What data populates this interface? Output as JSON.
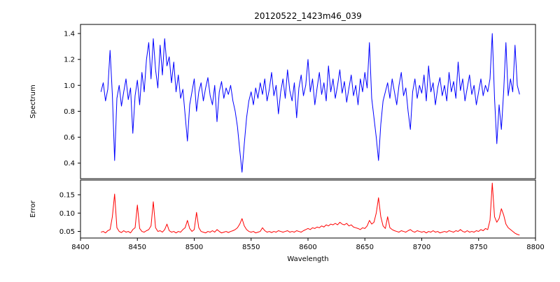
{
  "chart_data": {
    "type": "line",
    "title": "20120522_1423m46_039",
    "xlabel": "Wavelength",
    "x_start": 8418,
    "x_step": 2,
    "xlim": [
      8400,
      8800
    ],
    "xticks": [
      8400,
      8450,
      8500,
      8550,
      8600,
      8650,
      8700,
      8750,
      8800
    ],
    "xtick_labels": [
      "8400",
      "8450",
      "8500",
      "8550",
      "8600",
      "8650",
      "8700",
      "8750",
      "8800"
    ],
    "grid": false,
    "legend": "none",
    "panels": [
      {
        "name": "spectrum",
        "ylabel": "Spectrum",
        "color": "#0000ff",
        "ylim": [
          0.28,
          1.47
        ],
        "yticks": [
          0.4,
          0.6,
          0.8,
          1.0,
          1.2,
          1.4
        ],
        "ytick_labels": [
          "0.4",
          "0.6",
          "0.8",
          "1.0",
          "1.2",
          "1.4"
        ],
        "values": [
          0.95,
          1.02,
          0.88,
          0.97,
          1.27,
          0.93,
          0.42,
          0.9,
          1.0,
          0.84,
          0.95,
          1.05,
          0.89,
          0.98,
          0.63,
          0.92,
          1.04,
          0.85,
          1.1,
          0.95,
          1.2,
          1.33,
          1.05,
          1.36,
          1.12,
          0.98,
          1.31,
          1.08,
          1.36,
          1.15,
          1.22,
          1.02,
          1.18,
          0.95,
          1.08,
          0.9,
          0.97,
          0.77,
          0.57,
          0.85,
          0.95,
          1.05,
          0.8,
          0.95,
          1.02,
          0.88,
          0.98,
          1.06,
          0.92,
          0.85,
          1.0,
          0.72,
          0.95,
          1.03,
          0.9,
          0.98,
          0.93,
          1.0,
          0.88,
          0.8,
          0.68,
          0.5,
          0.33,
          0.55,
          0.75,
          0.88,
          0.95,
          0.85,
          0.98,
          0.9,
          1.02,
          0.93,
          1.05,
          0.88,
          0.97,
          1.1,
          0.92,
          1.0,
          0.78,
          0.95,
          1.05,
          0.9,
          1.12,
          0.96,
          0.88,
          1.02,
          0.75,
          0.98,
          1.08,
          0.92,
          1.0,
          1.2,
          0.95,
          1.05,
          0.85,
          0.98,
          1.1,
          0.93,
          1.02,
          0.88,
          1.15,
          0.95,
          1.05,
          0.9,
          1.0,
          1.12,
          0.94,
          1.03,
          0.87,
          0.98,
          1.08,
          0.92,
          1.0,
          0.85,
          1.05,
          0.95,
          1.1,
          0.98,
          1.33,
          0.9,
          0.75,
          0.6,
          0.42,
          0.7,
          0.88,
          0.95,
          1.02,
          0.9,
          1.05,
          0.95,
          0.85,
          1.0,
          1.1,
          0.92,
          0.98,
          0.8,
          0.66,
          0.95,
          1.05,
          0.9,
          1.0,
          0.94,
          1.08,
          0.88,
          1.15,
          0.95,
          1.02,
          0.85,
          0.98,
          1.06,
          0.92,
          1.0,
          0.88,
          1.1,
          0.95,
          1.03,
          0.9,
          1.18,
          0.96,
          1.05,
          0.88,
          0.98,
          1.08,
          0.93,
          1.0,
          0.85,
          0.95,
          1.05,
          0.92,
          1.0,
          0.95,
          1.05,
          1.4,
          0.9,
          0.55,
          0.85,
          0.66,
          0.95,
          1.33,
          0.92,
          1.05,
          0.95,
          1.31,
          1.0,
          0.93
        ]
      },
      {
        "name": "error",
        "ylabel": "Error",
        "color": "#ff0000",
        "ylim": [
          0.032,
          0.19
        ],
        "yticks": [
          0.05,
          0.1,
          0.15
        ],
        "ytick_labels": [
          "0.05",
          "0.10",
          "0.15"
        ],
        "values": [
          0.048,
          0.05,
          0.046,
          0.052,
          0.055,
          0.09,
          0.152,
          0.06,
          0.05,
          0.047,
          0.052,
          0.048,
          0.05,
          0.046,
          0.055,
          0.06,
          0.122,
          0.058,
          0.05,
          0.048,
          0.052,
          0.055,
          0.065,
          0.131,
          0.06,
          0.05,
          0.052,
          0.048,
          0.055,
          0.07,
          0.052,
          0.048,
          0.05,
          0.046,
          0.05,
          0.048,
          0.055,
          0.06,
          0.08,
          0.058,
          0.05,
          0.055,
          0.102,
          0.06,
          0.05,
          0.048,
          0.046,
          0.05,
          0.048,
          0.052,
          0.048,
          0.055,
          0.05,
          0.046,
          0.048,
          0.05,
          0.047,
          0.05,
          0.052,
          0.055,
          0.06,
          0.07,
          0.085,
          0.065,
          0.055,
          0.05,
          0.048,
          0.05,
          0.046,
          0.048,
          0.05,
          0.06,
          0.052,
          0.048,
          0.05,
          0.047,
          0.05,
          0.048,
          0.052,
          0.05,
          0.048,
          0.05,
          0.052,
          0.048,
          0.05,
          0.048,
          0.052,
          0.05,
          0.048,
          0.052,
          0.055,
          0.058,
          0.055,
          0.06,
          0.058,
          0.062,
          0.06,
          0.065,
          0.062,
          0.068,
          0.065,
          0.07,
          0.068,
          0.072,
          0.068,
          0.075,
          0.07,
          0.068,
          0.072,
          0.065,
          0.068,
          0.062,
          0.06,
          0.058,
          0.055,
          0.06,
          0.058,
          0.065,
          0.08,
          0.07,
          0.075,
          0.1,
          0.142,
          0.09,
          0.065,
          0.058,
          0.09,
          0.06,
          0.055,
          0.052,
          0.05,
          0.048,
          0.052,
          0.05,
          0.048,
          0.052,
          0.055,
          0.05,
          0.048,
          0.052,
          0.05,
          0.048,
          0.05,
          0.046,
          0.05,
          0.048,
          0.052,
          0.048,
          0.05,
          0.046,
          0.048,
          0.05,
          0.048,
          0.052,
          0.05,
          0.048,
          0.052,
          0.05,
          0.055,
          0.05,
          0.048,
          0.052,
          0.048,
          0.05,
          0.048,
          0.052,
          0.05,
          0.055,
          0.052,
          0.058,
          0.055,
          0.08,
          0.182,
          0.09,
          0.075,
          0.085,
          0.112,
          0.095,
          0.07,
          0.06,
          0.055,
          0.05,
          0.045,
          0.042,
          0.04
        ]
      }
    ]
  }
}
